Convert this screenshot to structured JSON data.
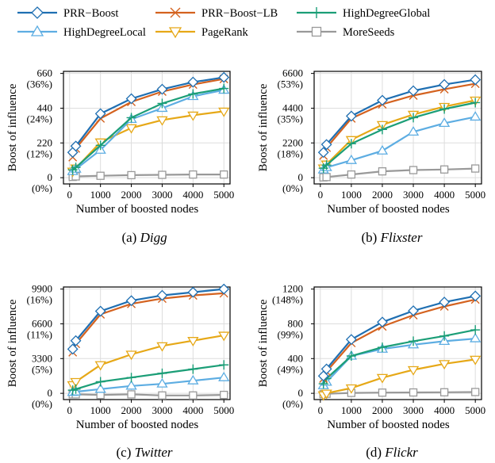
{
  "legend": {
    "items": [
      {
        "name": "PRR−Boost",
        "color": "#1f6fb2",
        "marker": "diamond"
      },
      {
        "name": "PRR−Boost−LB",
        "color": "#d4621f",
        "marker": "x"
      },
      {
        "name": "HighDegreeGlobal",
        "color": "#1b9e77",
        "marker": "plus"
      },
      {
        "name": "HighDegreeLocal",
        "color": "#5dade2",
        "marker": "triangle-up"
      },
      {
        "name": "PageRank",
        "color": "#e6a817",
        "marker": "triangle-down"
      },
      {
        "name": "MoreSeeds",
        "color": "#999999",
        "marker": "square"
      }
    ]
  },
  "chart_data": [
    {
      "type": "line",
      "caption_letter": "(a)",
      "caption_name": "Digg",
      "xlabel": "Number of boosted nodes",
      "ylabel": "Boost of influence",
      "x": [
        100,
        200,
        1000,
        2000,
        3000,
        4000,
        5000
      ],
      "xticks": [
        0,
        1000,
        2000,
        3000,
        4000,
        5000
      ],
      "ylim": [
        0,
        660
      ],
      "yticks": [
        {
          "v": 0,
          "label": "0",
          "pct": "(0%)"
        },
        {
          "v": 220,
          "label": "220",
          "pct": "(12%)"
        },
        {
          "v": 440,
          "label": "440",
          "pct": "(24%)"
        },
        {
          "v": 660,
          "label": "660",
          "pct": "(36%)"
        }
      ],
      "grid": true,
      "series": [
        {
          "name": "PRR−Boost",
          "values": [
            160,
            200,
            405,
            500,
            560,
            605,
            635
          ]
        },
        {
          "name": "PRR−Boost−LB",
          "values": [
            130,
            185,
            375,
            480,
            545,
            590,
            625
          ]
        },
        {
          "name": "HighDegreeGlobal",
          "values": [
            50,
            65,
            205,
            380,
            470,
            530,
            565
          ]
        },
        {
          "name": "HighDegreeLocal",
          "values": [
            40,
            55,
            175,
            370,
            440,
            515,
            555
          ]
        },
        {
          "name": "PageRank",
          "values": [
            40,
            60,
            225,
            315,
            365,
            395,
            420
          ]
        },
        {
          "name": "MoreSeeds",
          "values": [
            5,
            8,
            12,
            16,
            18,
            20,
            20
          ]
        }
      ]
    },
    {
      "type": "line",
      "caption_letter": "(b)",
      "caption_name": "Flixster",
      "xlabel": "Number of boosted nodes",
      "ylabel": "",
      "x": [
        100,
        200,
        1000,
        2000,
        3000,
        4000,
        5000
      ],
      "xticks": [
        0,
        1000,
        2000,
        3000,
        4000,
        5000
      ],
      "ylim": [
        0,
        6600
      ],
      "yticks": [
        {
          "v": 0,
          "label": "0",
          "pct": "(0%)"
        },
        {
          "v": 2200,
          "label": "2200",
          "pct": "(18%)"
        },
        {
          "v": 4400,
          "label": "4400",
          "pct": "(35%)"
        },
        {
          "v": 6600,
          "label": "6600",
          "pct": "(53%)"
        }
      ],
      "grid": true,
      "series": [
        {
          "name": "PRR−Boost",
          "values": [
            1600,
            2100,
            3900,
            4900,
            5500,
            5900,
            6200
          ]
        },
        {
          "name": "PRR−Boost−LB",
          "values": [
            1400,
            1900,
            3750,
            4650,
            5200,
            5600,
            5950
          ]
        },
        {
          "name": "HighDegreeGlobal",
          "values": [
            600,
            800,
            2150,
            3050,
            3800,
            4350,
            4750
          ]
        },
        {
          "name": "HighDegreeLocal",
          "values": [
            500,
            650,
            1100,
            1700,
            2900,
            3450,
            3850
          ]
        },
        {
          "name": "PageRank",
          "values": [
            600,
            850,
            2400,
            3350,
            4000,
            4500,
            4900
          ]
        },
        {
          "name": "MoreSeeds",
          "values": [
            20,
            40,
            200,
            400,
            480,
            520,
            580
          ]
        }
      ]
    },
    {
      "type": "line",
      "caption_letter": "(c)",
      "caption_name": "Twitter",
      "xlabel": "Number of boosted nodes",
      "ylabel": "Boost of influence",
      "x": [
        100,
        200,
        1000,
        2000,
        3000,
        4000,
        5000
      ],
      "xticks": [
        0,
        1000,
        2000,
        3000,
        4000,
        5000
      ],
      "ylim": [
        0,
        9900
      ],
      "yticks": [
        {
          "v": 0,
          "label": "0",
          "pct": "(0%)"
        },
        {
          "v": 3300,
          "label": "3300",
          "pct": "(5%)"
        },
        {
          "v": 6600,
          "label": "6600",
          "pct": "(11%)"
        },
        {
          "v": 9900,
          "label": "9900",
          "pct": "(16%)"
        }
      ],
      "grid": true,
      "series": [
        {
          "name": "PRR−Boost",
          "values": [
            4200,
            5000,
            7800,
            8800,
            9300,
            9600,
            9900
          ]
        },
        {
          "name": "PRR−Boost−LB",
          "values": [
            3900,
            4700,
            7500,
            8500,
            9000,
            9300,
            9500
          ]
        },
        {
          "name": "HighDegreeGlobal",
          "values": [
            300,
            400,
            1100,
            1500,
            1900,
            2300,
            2700
          ]
        },
        {
          "name": "HighDegreeLocal",
          "values": [
            100,
            150,
            400,
            700,
            900,
            1200,
            1500
          ]
        },
        {
          "name": "PageRank",
          "values": [
            800,
            1100,
            2700,
            3700,
            4500,
            5000,
            5500
          ]
        },
        {
          "name": "MoreSeeds",
          "values": [
            -100,
            -100,
            -150,
            -100,
            -200,
            -200,
            -150
          ]
        }
      ]
    },
    {
      "type": "line",
      "caption_letter": "(d)",
      "caption_name": "Flickr",
      "xlabel": "Number of boosted nodes",
      "ylabel": "",
      "x": [
        100,
        200,
        1000,
        2000,
        3000,
        4000,
        5000
      ],
      "xticks": [
        0,
        1000,
        2000,
        3000,
        4000,
        5000
      ],
      "ylim": [
        0,
        1200
      ],
      "yticks": [
        {
          "v": 0,
          "label": "0",
          "pct": "(0%)"
        },
        {
          "v": 400,
          "label": "400",
          "pct": "(49%)"
        },
        {
          "v": 800,
          "label": "800",
          "pct": "(99%)"
        },
        {
          "v": 1200,
          "label": "1200",
          "pct": "(148%)"
        }
      ],
      "grid": true,
      "series": [
        {
          "name": "PRR−Boost",
          "values": [
            200,
            280,
            620,
            820,
            950,
            1050,
            1120
          ]
        },
        {
          "name": "PRR−Boost−LB",
          "values": [
            170,
            250,
            580,
            770,
            900,
            1000,
            1080
          ]
        },
        {
          "name": "HighDegreeGlobal",
          "values": [
            110,
            170,
            430,
            530,
            600,
            660,
            730
          ]
        },
        {
          "name": "HighDegreeLocal",
          "values": [
            90,
            130,
            430,
            510,
            560,
            600,
            630
          ]
        },
        {
          "name": "PageRank",
          "values": [
            -20,
            0,
            60,
            180,
            270,
            340,
            390
          ]
        },
        {
          "name": "MoreSeeds",
          "values": [
            -10,
            -5,
            5,
            8,
            10,
            12,
            15
          ]
        }
      ]
    }
  ]
}
